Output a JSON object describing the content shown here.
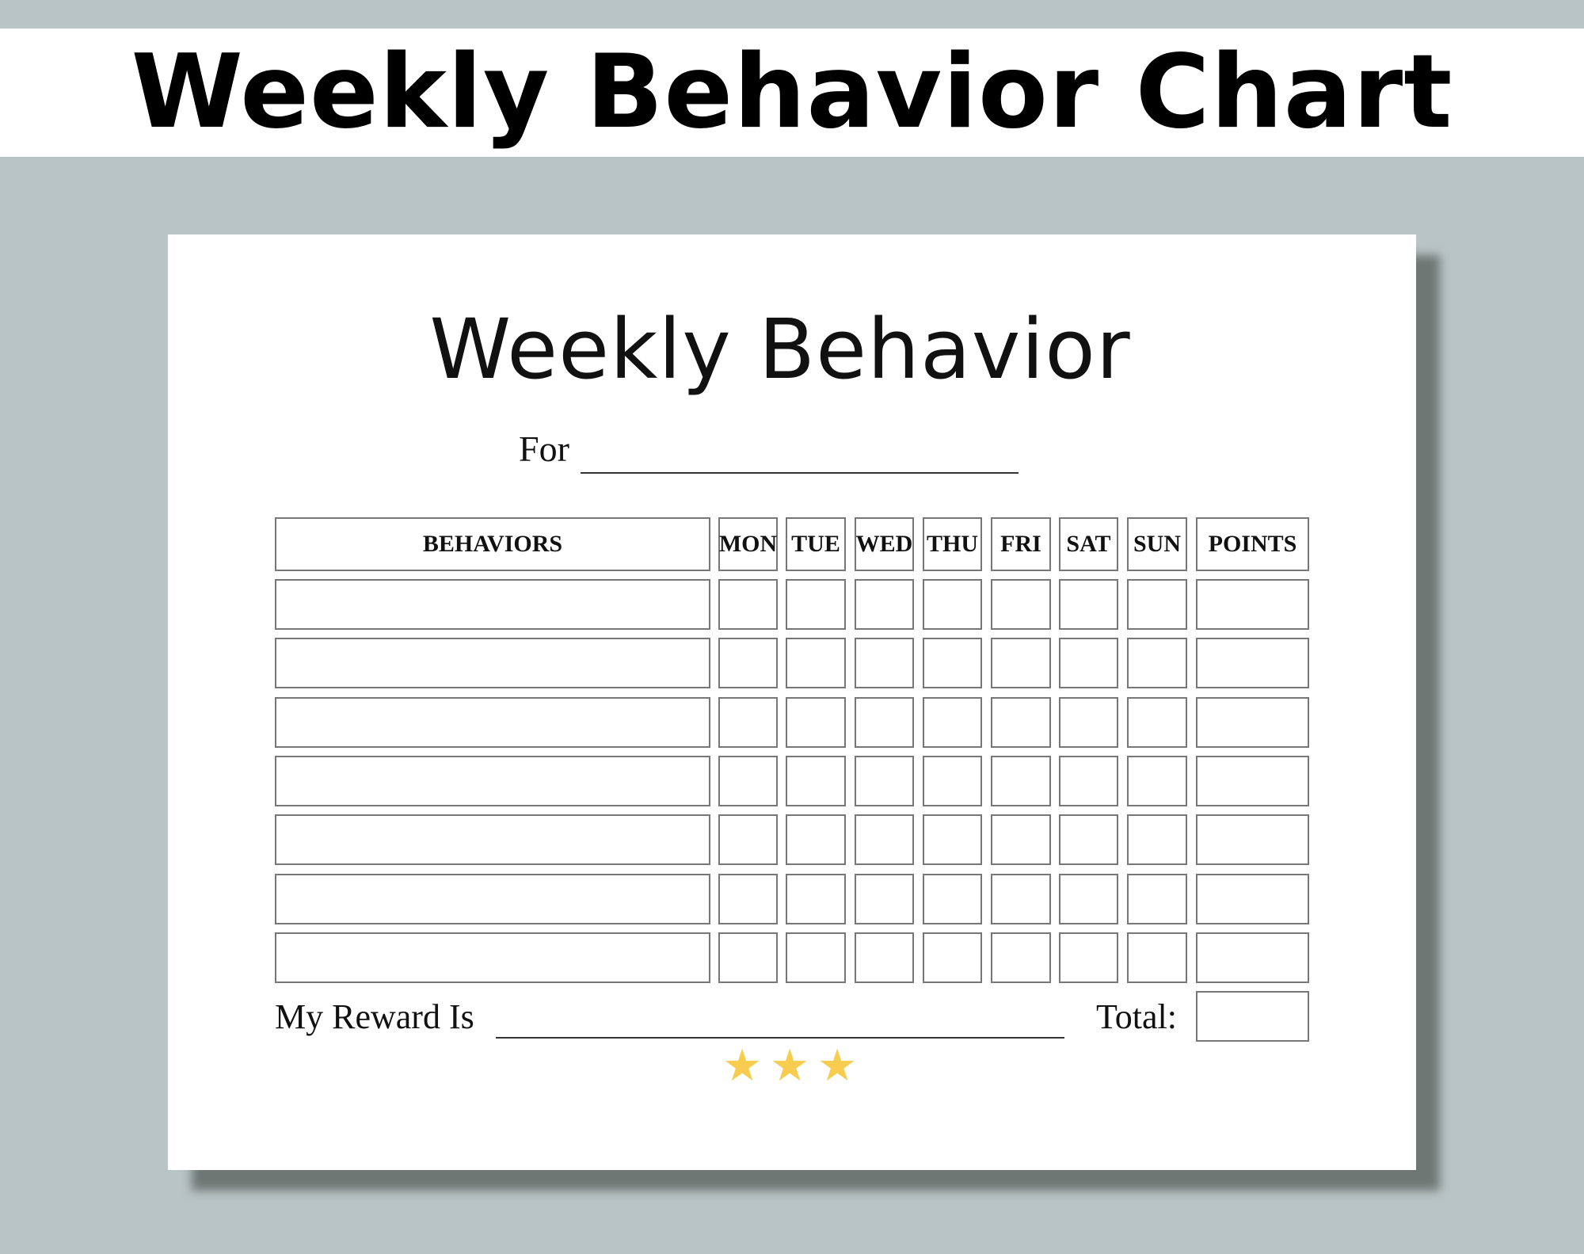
{
  "banner": {
    "title": "Weekly Behavior Chart"
  },
  "sheet": {
    "title": "Weekly Behavior",
    "for_label": "For",
    "table": {
      "headers": [
        "BEHAVIORS",
        "MON",
        "TUE",
        "WED",
        "THU",
        "FRI",
        "SAT",
        "SUN",
        "POINTS"
      ],
      "row_count": 7
    },
    "reward_label": "My Reward Is",
    "total_label": "Total:",
    "stars": {
      "count": 3,
      "color": "#f8cc4f"
    }
  },
  "colors": {
    "background": "#b9c4c4",
    "paper": "#ffffff",
    "shadow": "#6e7774",
    "cell_border": "#777777"
  }
}
